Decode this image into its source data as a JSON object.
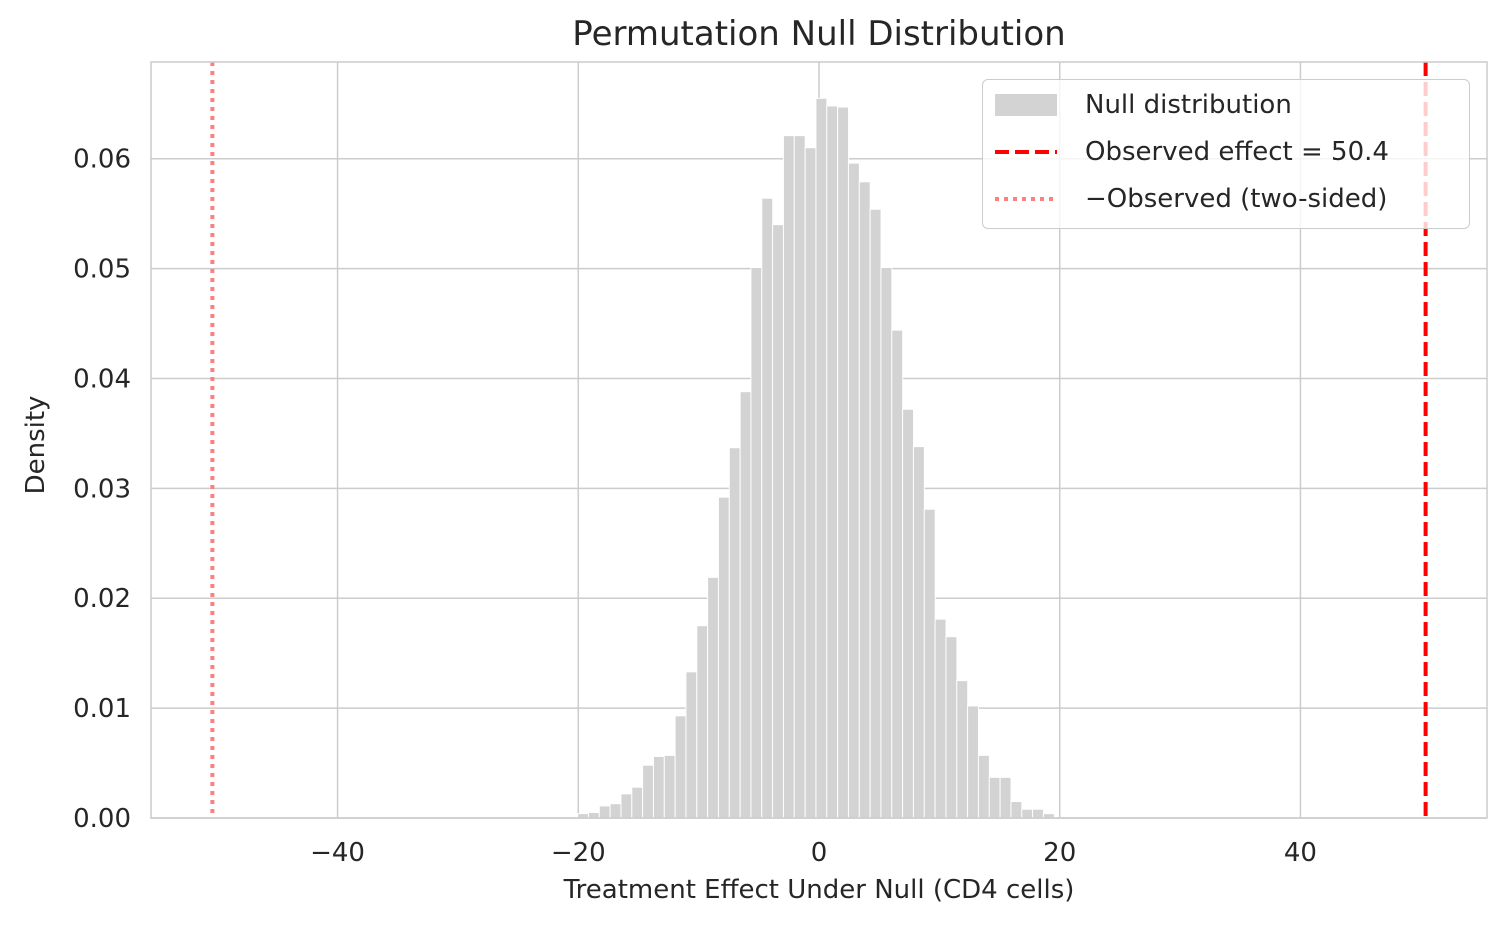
{
  "chart_data": {
    "type": "bar",
    "title": "Permutation Null Distribution",
    "xlabel": "Treatment Effect Under Null (CD4 cells)",
    "ylabel": "Density",
    "xlim": [
      -55.5,
      55.5
    ],
    "ylim": [
      0,
      0.0688
    ],
    "xticks": [
      -40,
      -20,
      0,
      20,
      40
    ],
    "xtick_labels": [
      "−40",
      "−20",
      "0",
      "20",
      "40"
    ],
    "yticks": [
      0,
      0.01,
      0.02,
      0.03,
      0.04,
      0.05,
      0.06
    ],
    "ytick_labels": [
      "0.00",
      "0.01",
      "0.02",
      "0.03",
      "0.04",
      "0.05",
      "0.06"
    ],
    "grid": true,
    "legend_position": "top-right",
    "histogram": {
      "name": "Null distribution",
      "color": "#d3d3d3",
      "bin_width": 0.91,
      "bin_centers": [
        -19.6,
        -18.7,
        -17.8,
        -16.9,
        -16.0,
        -15.1,
        -14.2,
        -13.3,
        -12.4,
        -11.5,
        -10.6,
        -9.7,
        -8.8,
        -7.9,
        -7.0,
        -6.1,
        -5.2,
        -4.3,
        -3.4,
        -2.5,
        -1.6,
        -0.7,
        0.2,
        1.1,
        2.0,
        2.9,
        3.8,
        4.7,
        5.6,
        6.5,
        7.4,
        8.3,
        9.2,
        10.1,
        11.0,
        11.9,
        12.8,
        13.7,
        14.6,
        15.5,
        16.4,
        17.3,
        18.2,
        19.1
      ],
      "values": [
        0.0004,
        0.0005,
        0.0011,
        0.0013,
        0.0022,
        0.0028,
        0.0048,
        0.0056,
        0.0057,
        0.0093,
        0.0133,
        0.0175,
        0.0219,
        0.0292,
        0.0337,
        0.0388,
        0.0501,
        0.0564,
        0.054,
        0.0621,
        0.0621,
        0.061,
        0.0655,
        0.0648,
        0.0647,
        0.0596,
        0.0579,
        0.0554,
        0.0501,
        0.0444,
        0.0372,
        0.0338,
        0.0281,
        0.0181,
        0.0165,
        0.0125,
        0.0102,
        0.0057,
        0.0037,
        0.0037,
        0.0015,
        0.0008,
        0.0008,
        0.0004
      ]
    },
    "lines": [
      {
        "name": "Observed effect = 50.4",
        "x": 50.4,
        "color": "#ff0000",
        "style": "dashed"
      },
      {
        "name": "−Observed (two-sided)",
        "x": -50.4,
        "color": "#ff7f7f",
        "style": "dotted"
      }
    ]
  }
}
